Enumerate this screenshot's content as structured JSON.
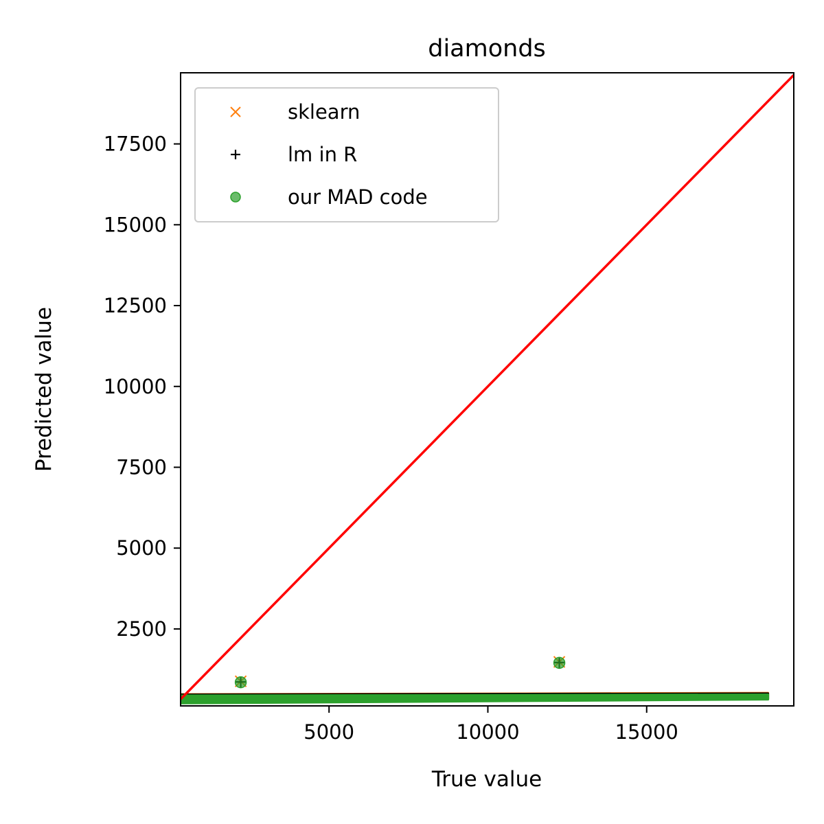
{
  "chart_data": {
    "type": "scatter",
    "title": "diamonds",
    "xlabel": "True value",
    "ylabel": "Predicted value",
    "xlim": [
      326,
      19632
    ],
    "ylim": [
      120,
      19700
    ],
    "xticks": [
      5000,
      10000,
      15000
    ],
    "yticks": [
      2500,
      5000,
      7500,
      10000,
      12500,
      15000,
      17500
    ],
    "xtick_labels": [
      "5000",
      "10000",
      "15000"
    ],
    "ytick_labels": [
      "2500",
      "5000",
      "7500",
      "10000",
      "12500",
      "15000",
      "17500"
    ],
    "reference_line": {
      "label": "",
      "color": "#ff0000",
      "points": [
        [
          326,
          326
        ],
        [
          19632,
          19632
        ]
      ]
    },
    "legend": {
      "position": "top-left"
    },
    "series": [
      {
        "name": "sklearn",
        "marker": "x",
        "color": "#ff7f0e",
        "band": {
          "x": [
            326,
            18823
          ],
          "y_low": [
            210,
            330
          ],
          "y_high": [
            480,
            520
          ]
        },
        "outliers": [
          [
            2220,
            880
          ],
          [
            12250,
            1480
          ]
        ]
      },
      {
        "name": "lm in R",
        "marker": "+",
        "color": "#000000",
        "band": {
          "x": [
            326,
            18823
          ],
          "y_low": [
            210,
            330
          ],
          "y_high": [
            470,
            505
          ]
        },
        "outliers": [
          [
            2220,
            860
          ],
          [
            12250,
            1460
          ]
        ]
      },
      {
        "name": "our MAD code",
        "marker": "o",
        "color": "#2ca02c",
        "band": {
          "x": [
            326,
            18823
          ],
          "y_low": [
            200,
            320
          ],
          "y_high": [
            440,
            470
          ]
        },
        "outliers": [
          [
            2220,
            850
          ],
          [
            12250,
            1450
          ]
        ]
      }
    ]
  }
}
